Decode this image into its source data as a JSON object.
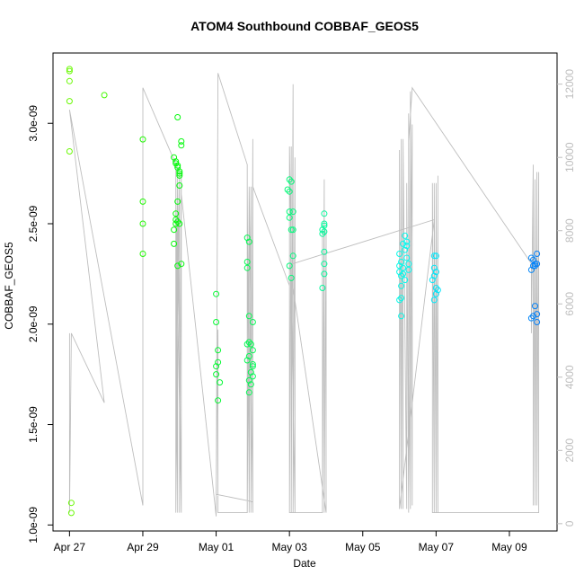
{
  "chart_data": {
    "type": "scatter",
    "title": "ATOM4 Southbound COBBAF_GEOS5",
    "xlabel": "Date",
    "ylabel": "COBBAF_GEOS5",
    "x_ticks": [
      "Apr 27",
      "Apr 29",
      "May 01",
      "May 03",
      "May 05",
      "May 07",
      "May 09"
    ],
    "x_tick_days": [
      0,
      2,
      4,
      6,
      8,
      10,
      12
    ],
    "xlim_days": [
      -0.45,
      13.3
    ],
    "y_ticks": [
      "1.0e-09",
      "1.5e-09",
      "2.0e-09",
      "2.5e-09",
      "3.0e-09"
    ],
    "y_tick_values": [
      1.0,
      1.5,
      2.0,
      2.5,
      3.0
    ],
    "ylim": [
      0.97,
      3.35
    ],
    "y_unit": "1e-09",
    "y2_ticks": [
      "0",
      "2000",
      "4000",
      "6000",
      "8000",
      "10000",
      "12000"
    ],
    "y2_tick_values": [
      0,
      2000,
      4000,
      6000,
      8000,
      10000,
      12000
    ],
    "y2lim": [
      -200,
      12850
    ],
    "grid": false,
    "legend": "none",
    "point_color_scale": "green-to-blue by date",
    "points": [
      [
        0.0,
        3.27
      ],
      [
        0.0,
        3.26
      ],
      [
        0.0,
        3.21
      ],
      [
        0.0,
        3.11
      ],
      [
        0.0,
        2.86
      ],
      [
        0.05,
        1.11
      ],
      [
        0.05,
        1.06
      ],
      [
        0.95,
        3.14
      ],
      [
        2.0,
        2.92
      ],
      [
        2.0,
        2.61
      ],
      [
        2.0,
        2.5
      ],
      [
        2.0,
        2.35
      ],
      [
        2.85,
        2.83
      ],
      [
        2.9,
        2.81
      ],
      [
        2.9,
        2.8
      ],
      [
        2.95,
        2.79
      ],
      [
        2.95,
        2.78
      ],
      [
        3.0,
        2.76
      ],
      [
        3.0,
        2.75
      ],
      [
        3.0,
        2.74
      ],
      [
        3.05,
        2.89
      ],
      [
        3.05,
        2.91
      ],
      [
        2.95,
        3.03
      ],
      [
        3.0,
        2.69
      ],
      [
        2.95,
        2.61
      ],
      [
        2.9,
        2.55
      ],
      [
        2.9,
        2.52
      ],
      [
        2.95,
        2.51
      ],
      [
        2.9,
        2.5
      ],
      [
        3.0,
        2.5
      ],
      [
        2.85,
        2.47
      ],
      [
        2.85,
        2.4
      ],
      [
        2.95,
        2.29
      ],
      [
        3.05,
        2.3
      ],
      [
        4.0,
        2.15
      ],
      [
        4.0,
        2.01
      ],
      [
        4.05,
        1.87
      ],
      [
        4.05,
        1.81
      ],
      [
        4.0,
        1.79
      ],
      [
        4.0,
        1.75
      ],
      [
        4.1,
        1.71
      ],
      [
        4.05,
        1.62
      ],
      [
        4.85,
        2.43
      ],
      [
        4.9,
        2.41
      ],
      [
        4.85,
        2.31
      ],
      [
        4.85,
        2.28
      ],
      [
        4.9,
        2.04
      ],
      [
        5.0,
        2.01
      ],
      [
        4.9,
        1.91
      ],
      [
        4.95,
        1.9
      ],
      [
        4.85,
        1.9
      ],
      [
        5.0,
        1.87
      ],
      [
        4.9,
        1.84
      ],
      [
        4.85,
        1.82
      ],
      [
        5.0,
        1.8
      ],
      [
        5.0,
        1.79
      ],
      [
        4.95,
        1.76
      ],
      [
        5.0,
        1.74
      ],
      [
        4.9,
        1.72
      ],
      [
        4.95,
        1.7
      ],
      [
        4.9,
        1.66
      ],
      [
        6.0,
        2.72
      ],
      [
        6.05,
        2.71
      ],
      [
        5.95,
        2.67
      ],
      [
        6.0,
        2.66
      ],
      [
        6.0,
        2.56
      ],
      [
        6.1,
        2.56
      ],
      [
        6.0,
        2.53
      ],
      [
        6.05,
        2.47
      ],
      [
        6.1,
        2.47
      ],
      [
        6.1,
        2.34
      ],
      [
        6.0,
        2.29
      ],
      [
        6.05,
        2.23
      ],
      [
        6.95,
        2.55
      ],
      [
        6.95,
        2.5
      ],
      [
        6.95,
        2.49
      ],
      [
        6.9,
        2.47
      ],
      [
        6.95,
        2.46
      ],
      [
        6.9,
        2.45
      ],
      [
        6.95,
        2.36
      ],
      [
        6.95,
        2.3
      ],
      [
        6.95,
        2.25
      ],
      [
        6.9,
        2.18
      ],
      [
        9.0,
        2.35
      ],
      [
        9.05,
        2.31
      ],
      [
        9.0,
        2.29
      ],
      [
        9.1,
        2.28
      ],
      [
        9.0,
        2.26
      ],
      [
        9.1,
        2.25
      ],
      [
        9.05,
        2.24
      ],
      [
        9.15,
        2.44
      ],
      [
        9.2,
        2.41
      ],
      [
        9.1,
        2.4
      ],
      [
        9.2,
        2.39
      ],
      [
        9.15,
        2.37
      ],
      [
        9.2,
        2.33
      ],
      [
        9.25,
        2.3
      ],
      [
        9.25,
        2.27
      ],
      [
        9.15,
        2.22
      ],
      [
        9.05,
        2.19
      ],
      [
        9.05,
        2.13
      ],
      [
        9.0,
        2.12
      ],
      [
        9.05,
        2.04
      ],
      [
        9.95,
        2.34
      ],
      [
        10.0,
        2.34
      ],
      [
        9.95,
        2.28
      ],
      [
        10.0,
        2.26
      ],
      [
        9.95,
        2.24
      ],
      [
        9.9,
        2.22
      ],
      [
        10.0,
        2.18
      ],
      [
        10.05,
        2.17
      ],
      [
        10.0,
        2.15
      ],
      [
        9.95,
        2.12
      ],
      [
        12.6,
        2.33
      ],
      [
        12.65,
        2.32
      ],
      [
        12.7,
        2.3
      ],
      [
        12.65,
        2.29
      ],
      [
        12.75,
        2.3
      ],
      [
        12.7,
        2.29
      ],
      [
        12.75,
        2.35
      ],
      [
        12.6,
        2.27
      ],
      [
        12.7,
        2.09
      ],
      [
        12.75,
        2.05
      ],
      [
        12.65,
        2.04
      ],
      [
        12.6,
        2.03
      ],
      [
        12.75,
        2.01
      ]
    ],
    "altitude_trace": [
      [
        0.0,
        5200
      ],
      [
        0.0,
        300
      ],
      [
        0.05,
        5200
      ],
      [
        0.95,
        3300
      ],
      [
        0.95,
        3300
      ],
      [
        0.0,
        11300
      ],
      [
        2.0,
        500
      ],
      [
        2.0,
        11900
      ],
      [
        2.95,
        9700
      ],
      [
        2.9,
        1200
      ],
      [
        2.9,
        9700
      ],
      [
        2.95,
        300
      ],
      [
        2.95,
        9300
      ],
      [
        3.05,
        300
      ],
      [
        3.05,
        9600
      ],
      [
        3.0,
        300
      ],
      [
        3.0,
        9600
      ],
      [
        2.9,
        300
      ],
      [
        2.9,
        9000
      ],
      [
        3.05,
        300
      ],
      [
        3.05,
        9000
      ],
      [
        4.0,
        200
      ],
      [
        4.05,
        12300
      ],
      [
        4.85,
        9800
      ],
      [
        4.85,
        300
      ],
      [
        4.9,
        9200
      ],
      [
        4.9,
        300
      ],
      [
        4.95,
        9200
      ],
      [
        4.95,
        300
      ],
      [
        5.0,
        10500
      ],
      [
        5.0,
        600
      ],
      [
        4.0,
        800
      ],
      [
        4.05,
        5300
      ],
      [
        4.05,
        300
      ],
      [
        4.85,
        300
      ],
      [
        4.85,
        9200
      ],
      [
        4.9,
        700
      ],
      [
        4.9,
        9200
      ],
      [
        5.0,
        300
      ],
      [
        5.0,
        9200
      ],
      [
        6.0,
        6500
      ],
      [
        6.0,
        300
      ],
      [
        6.05,
        10300
      ],
      [
        6.05,
        300
      ],
      [
        6.1,
        12000
      ],
      [
        6.1,
        300
      ],
      [
        6.15,
        10000
      ],
      [
        6.15,
        300
      ],
      [
        6.0,
        10300
      ],
      [
        6.0,
        6200
      ],
      [
        6.0,
        300
      ],
      [
        6.9,
        300
      ],
      [
        6.9,
        8000
      ],
      [
        6.9,
        300
      ],
      [
        6.95,
        9400
      ],
      [
        6.95,
        300
      ],
      [
        7.0,
        8000
      ],
      [
        7.0,
        300
      ],
      [
        6.0,
        7100
      ],
      [
        6.1,
        7100
      ],
      [
        9.95,
        8300
      ],
      [
        9.0,
        400
      ],
      [
        9.0,
        10200
      ],
      [
        9.05,
        400
      ],
      [
        9.05,
        10500
      ],
      [
        9.1,
        400
      ],
      [
        9.1,
        10500
      ],
      [
        9.2,
        400
      ],
      [
        9.2,
        9300
      ],
      [
        9.25,
        300
      ],
      [
        9.25,
        11200
      ],
      [
        9.3,
        400
      ],
      [
        9.3,
        11800
      ],
      [
        9.35,
        500
      ],
      [
        9.35,
        10900
      ],
      [
        9.25,
        600
      ],
      [
        9.25,
        10400
      ],
      [
        9.35,
        11900
      ],
      [
        12.6,
        7100
      ],
      [
        12.6,
        5200
      ],
      [
        12.65,
        9800
      ],
      [
        12.65,
        500
      ],
      [
        12.7,
        9400
      ],
      [
        12.7,
        500
      ],
      [
        12.75,
        9600
      ],
      [
        12.75,
        500
      ],
      [
        12.8,
        9600
      ],
      [
        12.8,
        300
      ],
      [
        9.9,
        300
      ],
      [
        9.9,
        9300
      ],
      [
        9.95,
        300
      ],
      [
        9.95,
        9300
      ],
      [
        10.0,
        300
      ],
      [
        10.0,
        9300
      ],
      [
        10.05,
        300
      ],
      [
        10.05,
        9500
      ]
    ]
  }
}
